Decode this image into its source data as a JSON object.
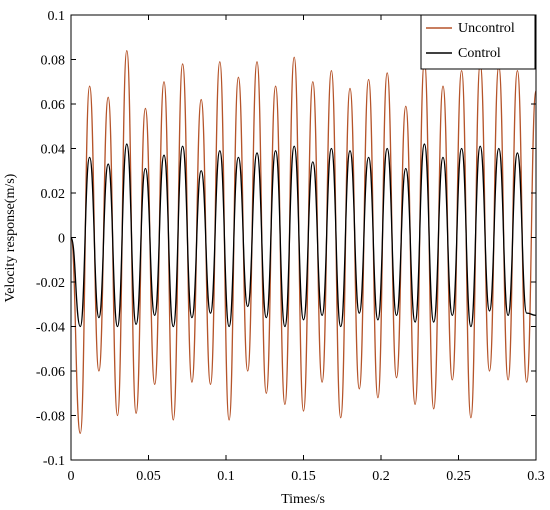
{
  "chart_data": {
    "type": "line",
    "title": "",
    "xlabel": "Times/s",
    "ylabel": "Velocity response(m/s)",
    "xlim": [
      0,
      0.3
    ],
    "ylim": [
      -0.1,
      0.1
    ],
    "xticks": [
      0,
      0.05,
      0.1,
      0.15,
      0.2,
      0.25,
      0.3
    ],
    "xtick_labels": [
      "0",
      "0.05",
      "0.1",
      "0.15",
      "0.2",
      "0.25",
      "0.3"
    ],
    "yticks": [
      -0.1,
      -0.08,
      -0.06,
      -0.04,
      -0.02,
      0,
      0.02,
      0.04,
      0.06,
      0.08,
      0.1
    ],
    "ytick_labels": [
      "-0.1",
      "-0.08",
      "-0.06",
      "-0.04",
      "-0.02",
      "0",
      "0.02",
      "0.04",
      "0.06",
      "0.08",
      "0.1"
    ],
    "grid": false,
    "legend_position": "top-right",
    "series": [
      {
        "name": "Uncontrol",
        "color": "#b5542a",
        "x": [
          0,
          0.006,
          0.012,
          0.018,
          0.024,
          0.03,
          0.036,
          0.042,
          0.048,
          0.054,
          0.06,
          0.066,
          0.072,
          0.078,
          0.084,
          0.09,
          0.096,
          0.102,
          0.108,
          0.114,
          0.12,
          0.126,
          0.132,
          0.138,
          0.144,
          0.15,
          0.156,
          0.162,
          0.168,
          0.174,
          0.18,
          0.186,
          0.192,
          0.198,
          0.204,
          0.21,
          0.216,
          0.222,
          0.228,
          0.234,
          0.24,
          0.246,
          0.252,
          0.258,
          0.264,
          0.27,
          0.276,
          0.282,
          0.288,
          0.294,
          0.3
        ],
        "y": [
          0,
          -0.088,
          0.068,
          -0.06,
          0.063,
          -0.08,
          0.084,
          -0.079,
          0.058,
          -0.066,
          0.07,
          -0.082,
          0.078,
          -0.065,
          0.062,
          -0.066,
          0.079,
          -0.082,
          0.072,
          -0.06,
          0.079,
          -0.07,
          0.068,
          -0.075,
          0.081,
          -0.078,
          0.07,
          -0.065,
          0.075,
          -0.081,
          0.067,
          -0.068,
          0.071,
          -0.072,
          0.074,
          -0.063,
          0.059,
          -0.075,
          0.079,
          -0.077,
          0.068,
          -0.064,
          0.075,
          -0.081,
          0.078,
          -0.06,
          0.077,
          -0.064,
          0.075,
          -0.065,
          0.066
        ]
      },
      {
        "name": "Control",
        "color": "#000000",
        "x": [
          0,
          0.006,
          0.012,
          0.018,
          0.024,
          0.03,
          0.036,
          0.042,
          0.048,
          0.054,
          0.06,
          0.066,
          0.072,
          0.078,
          0.084,
          0.09,
          0.096,
          0.102,
          0.108,
          0.114,
          0.12,
          0.126,
          0.132,
          0.138,
          0.144,
          0.15,
          0.156,
          0.162,
          0.168,
          0.174,
          0.18,
          0.186,
          0.192,
          0.198,
          0.204,
          0.21,
          0.216,
          0.222,
          0.228,
          0.234,
          0.24,
          0.246,
          0.252,
          0.258,
          0.264,
          0.27,
          0.276,
          0.282,
          0.288,
          0.294,
          0.3
        ],
        "y": [
          0,
          -0.04,
          0.036,
          -0.036,
          0.033,
          -0.04,
          0.042,
          -0.039,
          0.031,
          -0.035,
          0.037,
          -0.04,
          0.041,
          -0.036,
          0.03,
          -0.034,
          0.039,
          -0.04,
          0.036,
          -0.031,
          0.038,
          -0.036,
          0.039,
          -0.04,
          0.041,
          -0.037,
          0.034,
          -0.035,
          0.04,
          -0.04,
          0.039,
          -0.034,
          0.036,
          -0.037,
          0.04,
          -0.035,
          0.031,
          -0.038,
          0.042,
          -0.038,
          0.036,
          -0.035,
          0.04,
          -0.04,
          0.041,
          -0.033,
          0.04,
          -0.035,
          0.038,
          -0.034,
          -0.035
        ]
      }
    ]
  }
}
